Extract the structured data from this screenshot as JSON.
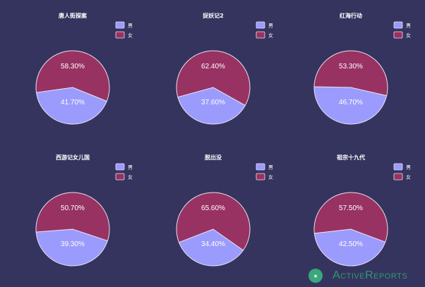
{
  "colors": {
    "male": "#9b9bfd",
    "female": "#983263",
    "background": "#35345f",
    "stroke": "#e6e0ee"
  },
  "brand": {
    "name": "ActiveReports"
  },
  "chart_data": [
    {
      "type": "pie",
      "title": "唐人街探案",
      "legend": [
        "男",
        "女"
      ],
      "values": [
        41.7,
        58.3
      ],
      "labels": [
        "41.70%",
        "58.30%"
      ]
    },
    {
      "type": "pie",
      "title": "捉妖记2",
      "legend": [
        "男",
        "女"
      ],
      "values": [
        37.6,
        62.4
      ],
      "labels": [
        "37.60%",
        "62.40%"
      ]
    },
    {
      "type": "pie",
      "title": "红海行动",
      "legend": [
        "男",
        "女"
      ],
      "values": [
        46.7,
        53.3
      ],
      "labels": [
        "46.70%",
        "53.30%"
      ]
    },
    {
      "type": "pie",
      "title": "西游记女儿国",
      "legend": [
        "男",
        "女"
      ],
      "values": [
        39.3,
        50.7
      ],
      "labels": [
        "39.30%",
        "50.70%"
      ]
    },
    {
      "type": "pie",
      "title": "脱出没",
      "legend": [
        "男",
        "女"
      ],
      "values": [
        34.4,
        65.6
      ],
      "labels": [
        "34.40%",
        "65.60%"
      ]
    },
    {
      "type": "pie",
      "title": "祖宗十九代",
      "legend": [
        "男",
        "女"
      ],
      "values": [
        42.5,
        57.5
      ],
      "labels": [
        "42.50%",
        "57.50%"
      ]
    }
  ]
}
